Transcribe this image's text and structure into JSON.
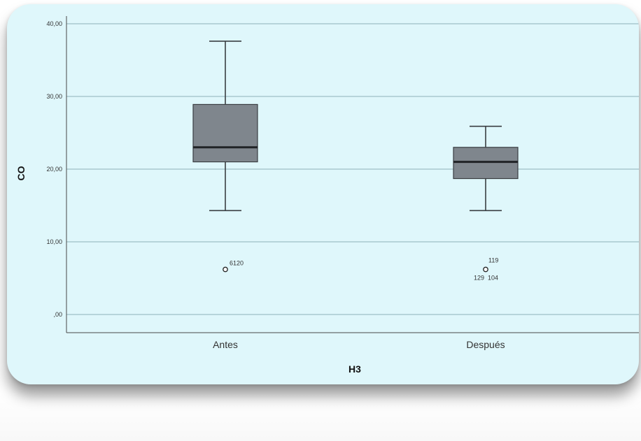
{
  "chart_data": {
    "type": "boxplot",
    "xlabel": "H3",
    "ylabel": "CO",
    "ylim": [
      0,
      40
    ],
    "y_ticks": [
      {
        "value": 0,
        "label": ",00"
      },
      {
        "value": 10,
        "label": "10,00"
      },
      {
        "value": 20,
        "label": "20,00"
      },
      {
        "value": 30,
        "label": "30,00"
      },
      {
        "value": 40,
        "label": "40,00"
      }
    ],
    "grid": true,
    "categories": [
      "Antes",
      "Después"
    ],
    "boxes": [
      {
        "category": "Antes",
        "whisker_low": 14.3,
        "q1": 21.0,
        "median": 23.0,
        "q3": 28.9,
        "whisker_high": 37.6,
        "outliers": [
          {
            "value": 6.2,
            "label": "6120"
          }
        ]
      },
      {
        "category": "Después",
        "whisker_low": 14.3,
        "q1": 18.7,
        "median": 21.0,
        "q3": 23.0,
        "whisker_high": 25.9,
        "outliers": [
          {
            "value": 6.2,
            "labels": [
              "119",
              "129",
              "104"
            ]
          }
        ]
      }
    ]
  },
  "colors": {
    "plot_background": "#dff7fb",
    "grid": "#a9c9d0",
    "box_fill": "#7f868d",
    "box_stroke": "#3a3e42",
    "median": "#202326",
    "whisker": "#3a3e42"
  }
}
